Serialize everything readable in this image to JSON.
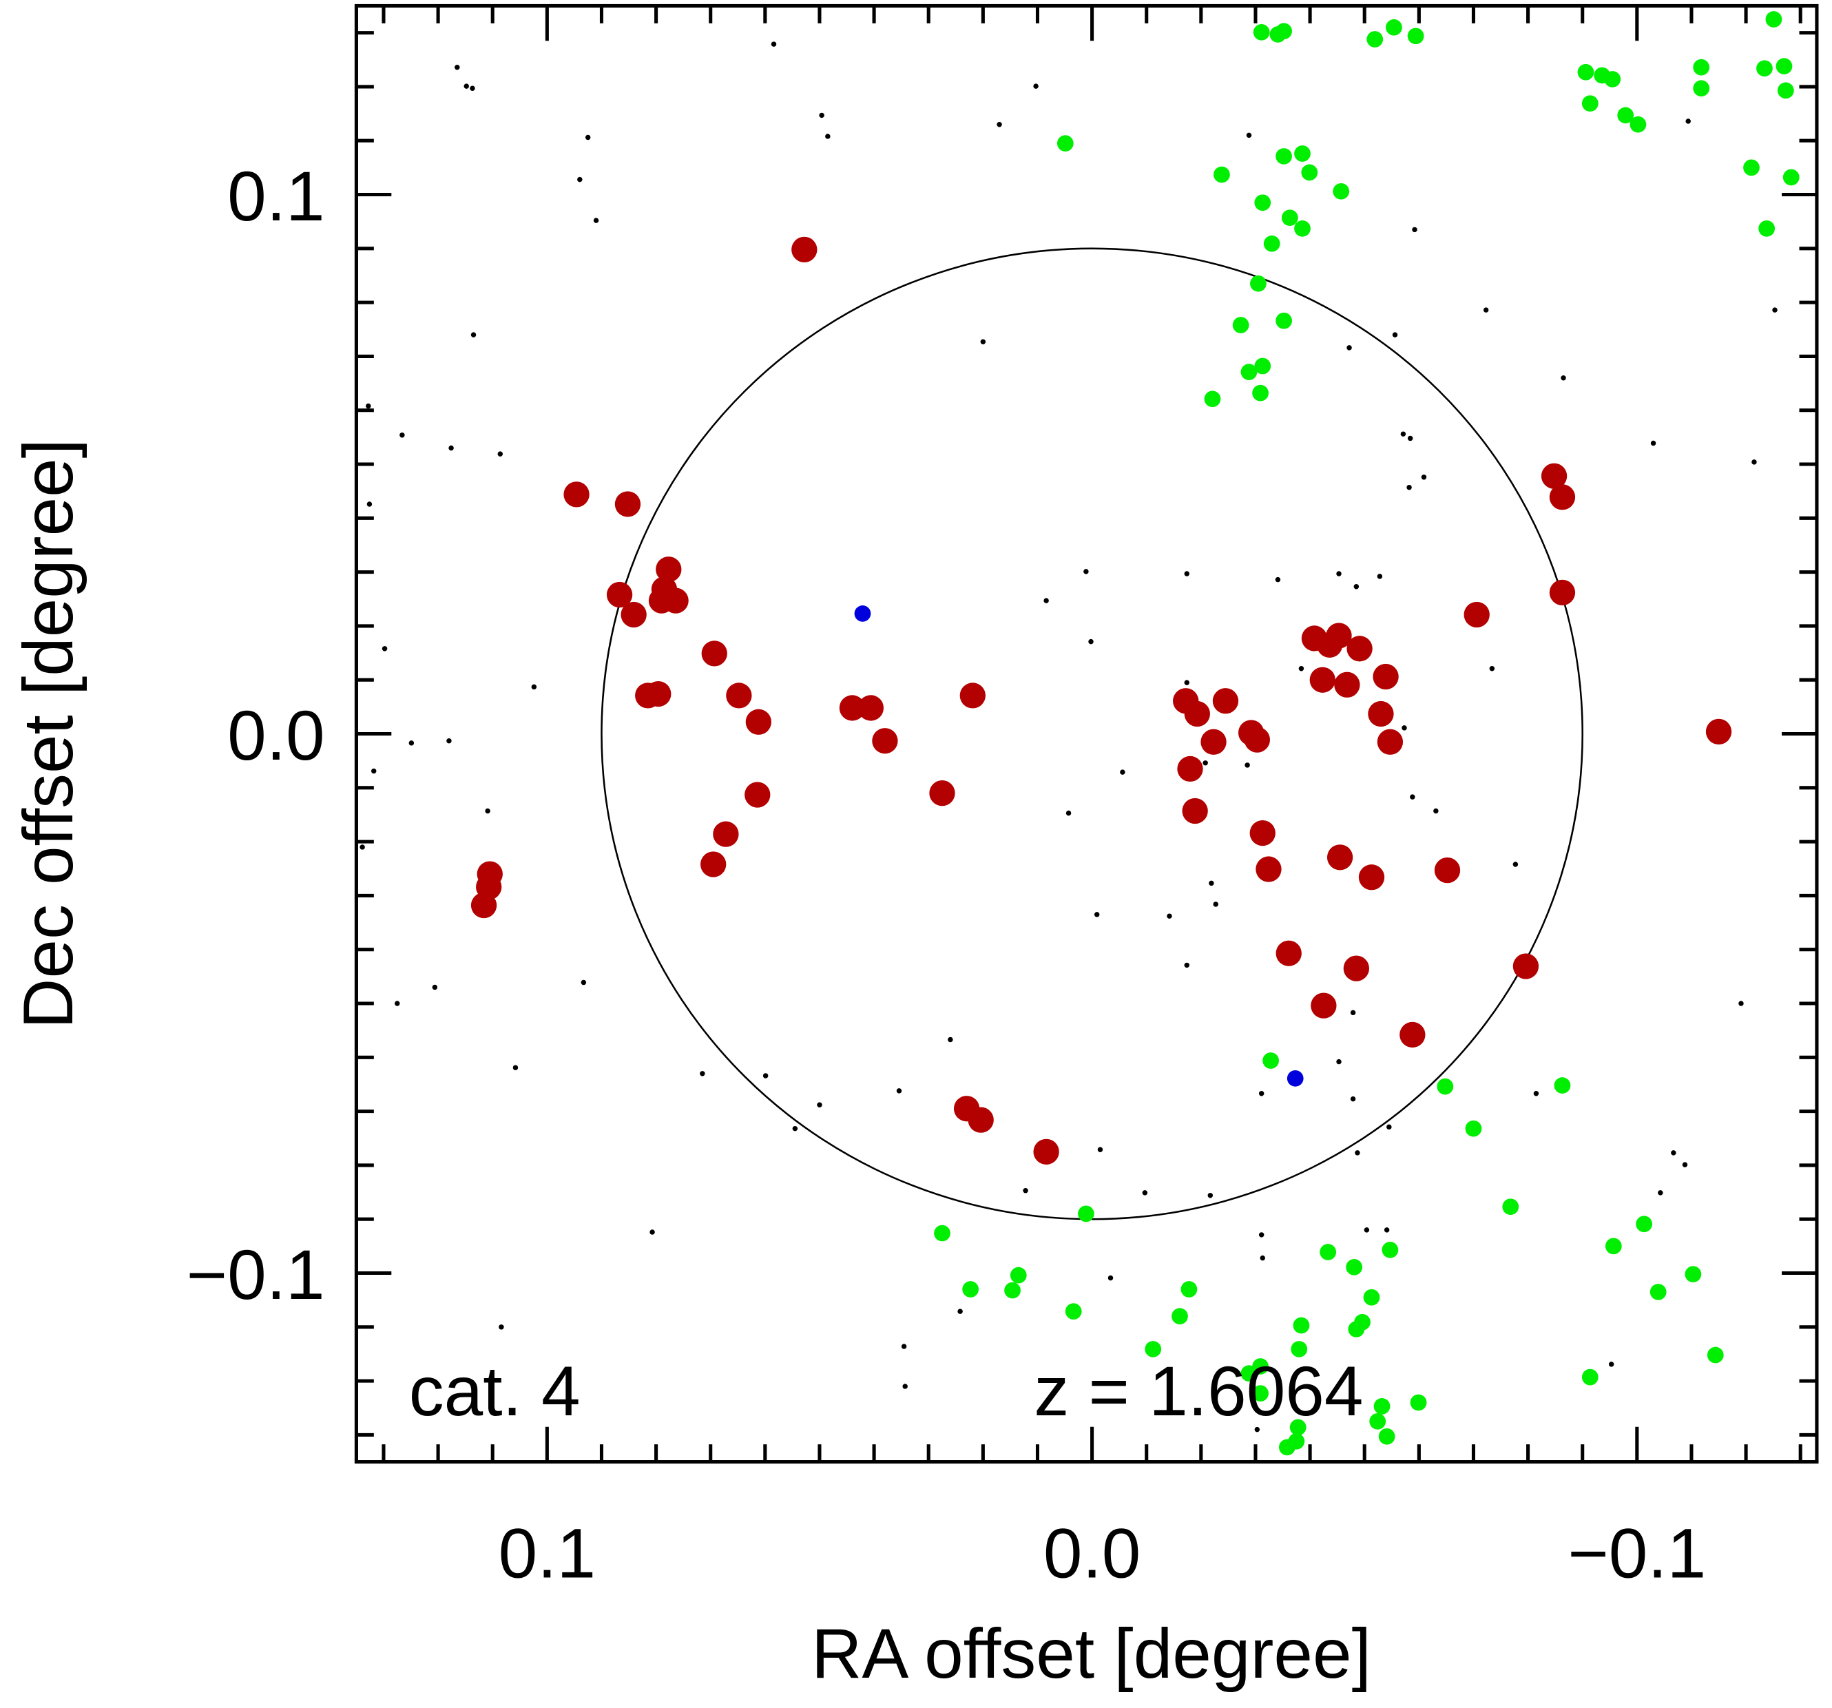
{
  "chart_data": {
    "type": "scatter",
    "xlabel": "RA offset [degree]",
    "ylabel": "Dec offset [degree]",
    "xlim": [
      0.135,
      -0.133
    ],
    "ylim": [
      -0.135,
      0.135
    ],
    "xticks": [
      0.1,
      {
        "value": 0,
        "label": "0.0"
      },
      {
        "value": -0.1,
        "label": "−0.1"
      }
    ],
    "yticks": [
      {
        "value": -0.1,
        "label": "−0.1"
      },
      {
        "value": 0,
        "label": "0.0"
      },
      0.1
    ],
    "xminorticks": [
      0.13,
      0.12,
      0.11,
      0.09,
      0.08,
      0.07,
      0.06,
      0.05,
      0.04,
      0.03,
      0.02,
      0.01,
      -0.01,
      -0.02,
      -0.03,
      -0.04,
      -0.05,
      -0.06,
      -0.07,
      -0.08,
      -0.09,
      -0.11,
      -0.12,
      -0.13
    ],
    "yminorticks": [
      -0.13,
      -0.12,
      -0.11,
      -0.09,
      -0.08,
      -0.07,
      -0.06,
      -0.05,
      -0.04,
      -0.03,
      -0.02,
      -0.01,
      0.01,
      0.02,
      0.03,
      0.04,
      0.05,
      0.06,
      0.07,
      0.08,
      0.09,
      0.11,
      0.12,
      0.13
    ],
    "annotations": [
      "cat. 4",
      "z = 1.6064"
    ],
    "circle": {
      "center": [
        0,
        0
      ],
      "radius": 0.09
    },
    "series": [
      {
        "color": "#b30000",
        "x": [
          0.0528,
          0.0946,
          0.0852,
          0.0867,
          0.0841,
          0.0777,
          0.0785,
          0.079,
          0.0764,
          0.0693,
          0.0815,
          0.0796,
          0.0648,
          0.0612,
          0.0614,
          0.0672,
          0.0695,
          0.044,
          0.0406,
          0.038,
          0.0219,
          0.0275,
          0.1105,
          0.1107,
          0.1116,
          0.023,
          0.0204,
          0.0084,
          -0.0172,
          -0.0193,
          -0.0245,
          -0.0223,
          -0.018,
          -0.0189,
          -0.0292,
          -0.0303,
          -0.0313,
          -0.0324,
          -0.0408,
          -0.0453,
          -0.0436,
          -0.0491,
          -0.0423,
          -0.0468,
          -0.0539,
          -0.053,
          -0.0547,
          -0.0361,
          -0.0425,
          -0.0455,
          -0.0513,
          -0.0485,
          -0.0588,
          -0.0652,
          -0.0706,
          -0.0796,
          -0.0848,
          -0.0863,
          -0.0863,
          -0.115
        ],
        "y": [
          0.0898,
          0.0444,
          0.0426,
          0.0258,
          0.0221,
          0.0305,
          0.0268,
          0.0247,
          0.0247,
          0.0149,
          0.0071,
          0.0074,
          0.0071,
          0.0022,
          -0.0113,
          -0.0186,
          -0.0242,
          0.0048,
          0.0048,
          -0.0013,
          0.0071,
          -0.011,
          -0.026,
          -0.0284,
          -0.0318,
          -0.0695,
          -0.0716,
          -0.0775,
          0.0061,
          0.0037,
          0.0061,
          -0.0015,
          -0.0065,
          -0.0143,
          0.0002,
          -0.0011,
          -0.0184,
          -0.0251,
          0.0177,
          0.0182,
          0.0165,
          0.0158,
          0.01,
          0.0091,
          0.0106,
          0.0037,
          -0.0015,
          -0.0407,
          -0.0504,
          -0.0229,
          -0.0266,
          -0.0435,
          -0.0558,
          -0.0253,
          0.0221,
          -0.0431,
          0.0478,
          0.0439,
          0.0262,
          0.0004
        ]
      },
      {
        "color": "#00ee00",
        "x": [
          -0.0311,
          -0.0341,
          -0.0352,
          -0.0519,
          -0.0554,
          -0.0594,
          -0.1251,
          -0.0906,
          -0.0936,
          -0.0955,
          -0.1118,
          -0.1118,
          -0.1234,
          -0.127,
          -0.1273,
          -0.0914,
          -0.0979,
          -0.1002,
          0.0049,
          -0.0352,
          -0.0386,
          -0.0238,
          -0.0399,
          -0.0457,
          -0.0313,
          -0.0363,
          -0.0386,
          -0.033,
          -0.121,
          -0.1283,
          -0.1238,
          -0.0305,
          -0.0273,
          -0.0352,
          -0.0313,
          -0.0288,
          -0.0309,
          -0.0221,
          -0.0328,
          -0.0648,
          -0.0863,
          -0.07,
          0.0011,
          0.0275,
          -0.0768,
          -0.0957,
          -0.1013,
          -0.1103,
          -0.1039,
          -0.1144,
          -0.0433,
          -0.0481,
          -0.0547,
          -0.0513,
          -0.0496,
          -0.0485,
          0.0135,
          0.0146,
          0.0223,
          0.0034,
          -0.0178,
          -0.0161,
          -0.0112,
          -0.0384,
          -0.038,
          -0.0309,
          -0.0288,
          -0.0309,
          -0.0914,
          -0.0532,
          -0.0599,
          -0.0524,
          -0.0541,
          -0.0378,
          -0.0358,
          -0.0375
        ],
        "y": [
          0.1301,
          0.1297,
          0.1303,
          0.1288,
          0.131,
          0.1294,
          0.1325,
          0.1227,
          0.1221,
          0.1214,
          0.1236,
          0.1197,
          0.1234,
          0.1238,
          0.1193,
          0.1169,
          0.1147,
          0.113,
          0.1095,
          0.1071,
          0.1076,
          0.1037,
          0.1041,
          0.1006,
          0.0985,
          0.0957,
          0.0937,
          0.0909,
          0.105,
          0.1032,
          0.0937,
          0.0835,
          0.0758,
          0.0766,
          0.0682,
          0.0671,
          0.0632,
          0.0621,
          -0.0606,
          -0.0654,
          -0.0652,
          -0.0732,
          -0.089,
          -0.0926,
          -0.0877,
          -0.095,
          -0.0909,
          -0.1002,
          -0.1035,
          -0.1152,
          -0.0961,
          -0.0989,
          -0.0957,
          -0.1045,
          -0.1091,
          -0.1104,
          -0.1004,
          -0.1032,
          -0.103,
          -0.1071,
          -0.103,
          -0.108,
          -0.1141,
          -0.1097,
          -0.1141,
          -0.1173,
          -0.1186,
          -0.1223,
          -0.1193,
          -0.1247,
          -0.124,
          -0.1275,
          -0.1303,
          -0.1286,
          -0.1323,
          -0.1312
        ]
      },
      {
        "color": "#0000dd",
        "x": [
          0.0421,
          -0.0373
        ],
        "y": [
          0.0223,
          -0.0639
        ]
      },
      {
        "color": "#000000",
        "x": [
          0.1165,
          0.1148,
          0.1137,
          0.0584,
          0.0103,
          0.0496,
          0.0485,
          0.017,
          0.0925,
          0.094,
          0.091,
          -0.0288,
          -0.0592,
          -0.1094,
          -0.1253,
          -0.0723,
          0.1135,
          0.02,
          -0.0472,
          -0.0556,
          -0.0865,
          0.1328,
          0.1266,
          0.1176,
          0.1086,
          -0.0571,
          -0.0584,
          -0.103,
          -0.1215,
          -0.0609,
          -0.0582,
          0.1326,
          0.0011,
          -0.0174,
          0.0084,
          -0.0341,
          -0.0453,
          -0.0485,
          -0.0528,
          0.1298,
          0.0002,
          -0.0384,
          -0.0734,
          0.1024,
          -0.0174,
          -0.0573,
          0.1249,
          0.118,
          0.1318,
          -0.0056,
          -0.0208,
          -0.0285,
          -0.0588,
          -0.0631,
          0.1109,
          0.0043,
          0.1339,
          -0.0777,
          -0.0219,
          -0.0227,
          -0.0009,
          -0.0142,
          -0.0174,
          0.0933,
          0.1206,
          0.1275,
          -0.1191,
          -0.0479,
          0.026,
          -0.0453,
          0.1058,
          0.0715,
          0.0599,
          -0.0311,
          -0.0479,
          -0.0815,
          0.0354,
          0.05,
          -0.0545,
          0.0545,
          -0.0015,
          -0.0487,
          -0.1067,
          -0.1088,
          0.0122,
          -0.0097,
          -0.0217,
          -0.1043,
          0.0807,
          -0.0504,
          -0.0541,
          -0.0311,
          -0.0313,
          -0.0034,
          0.0242,
          0.1084,
          0.0345,
          -0.0953,
          0.0343,
          -0.0303
        ],
        "y": [
          0.1236,
          0.1201,
          0.1197,
          0.1279,
          0.1201,
          0.1147,
          0.1108,
          0.113,
          0.1106,
          0.1028,
          0.0952,
          0.111,
          0.0935,
          0.1136,
          0.0786,
          0.0786,
          0.074,
          0.0727,
          0.0716,
          0.074,
          0.066,
          0.0608,
          0.0554,
          0.053,
          0.0519,
          0.0556,
          0.0548,
          0.0539,
          0.0504,
          0.0476,
          0.0457,
          0.0426,
          0.0301,
          0.0297,
          0.0247,
          0.0286,
          0.0297,
          0.0273,
          0.0292,
          0.0158,
          0.0171,
          0.0121,
          0.0121,
          0.0087,
          0.0095,
          0.0011,
          -0.0017,
          -0.0013,
          -0.0069,
          -0.0071,
          -0.0054,
          -0.0058,
          -0.0117,
          -0.0143,
          -0.0143,
          -0.0147,
          -0.021,
          -0.0242,
          -0.0277,
          -0.0316,
          -0.0335,
          -0.0338,
          -0.0429,
          -0.0461,
          -0.047,
          -0.05,
          -0.05,
          -0.0517,
          -0.0567,
          -0.0608,
          -0.0619,
          -0.063,
          -0.0634,
          -0.0667,
          -0.0677,
          -0.0667,
          -0.0662,
          -0.0688,
          -0.0729,
          -0.0732,
          -0.0771,
          -0.0777,
          -0.0777,
          -0.0799,
          -0.0847,
          -0.0851,
          -0.0856,
          -0.0851,
          -0.0924,
          -0.092,
          -0.092,
          -0.0929,
          -0.0972,
          -0.1009,
          -0.1071,
          -0.11,
          -0.1136,
          -0.1169,
          -0.121,
          -0.129
        ]
      }
    ]
  }
}
